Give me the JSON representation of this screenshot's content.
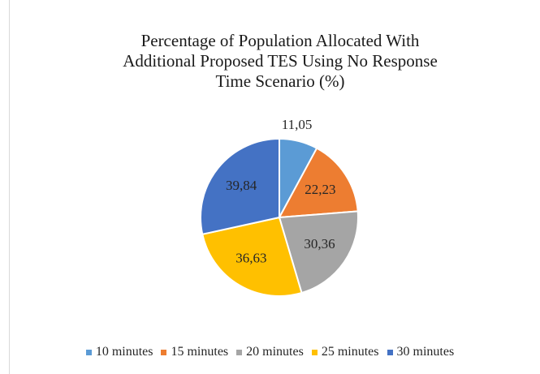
{
  "chart_data": {
    "type": "pie",
    "title_lines": [
      "Percentage of Population Allocated With",
      "Additional Proposed TES Using No Response",
      "Time Scenario (%)"
    ],
    "categories": [
      "10 minutes",
      "15 minutes",
      "20 minutes",
      "25 minutes",
      "30 minutes"
    ],
    "values": [
      11.05,
      22.23,
      30.36,
      36.63,
      39.84
    ],
    "value_labels": [
      "11,05",
      "22,23",
      "30,36",
      "36,63",
      "39,84"
    ],
    "colors": [
      "#5b9bd5",
      "#ed7d31",
      "#a5a5a5",
      "#ffc000",
      "#4472c4"
    ],
    "legend_position": "bottom",
    "start_angle": "12 o'clock",
    "direction": "clockwise"
  }
}
